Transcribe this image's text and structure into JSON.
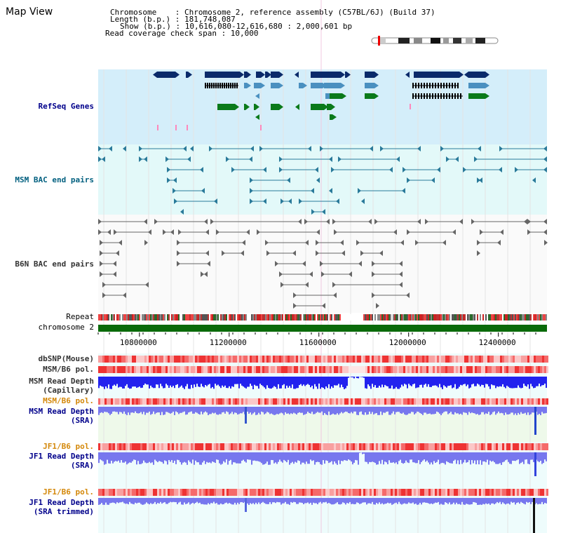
{
  "page_title": "Map View",
  "header": {
    "chromosome_line": "Chromosome    : Chromosome 2, reference assembly (C57BL/6J) (Build 37)",
    "length_line": "Length (b.p.) : 181,748,087",
    "show_line": "Show (b.p.) : 10,616,080-12,616,680 : 2,000,601 bp",
    "coverage_line": "Read coverage check span : 10,000"
  },
  "tracks": {
    "refseq": "RefSeq Genes",
    "msm_bac": "MSM BAC end pairs",
    "b6n_bac": "B6N BAC end pairs",
    "repeat": "Repeat",
    "chromosome": "chromosome 2",
    "dbsnp": "dbSNP(Mouse)",
    "msm_b6_pol_1": "MSM/B6 pol.",
    "msm_depth_cap_1": "MSM Read Depth",
    "msm_depth_cap_2": "(Capillary)",
    "msm_b6_pol_2": "MSM/B6 pol.",
    "msm_depth_sra_1": "MSM Read Depth",
    "msm_depth_sra_2": "(SRA)",
    "jf1_b6_pol_1": "JF1/B6 pol.",
    "jf1_depth_sra_1": "JF1 Read Depth",
    "jf1_depth_sra_2": "(SRA)",
    "jf1_b6_pol_2": "JF1/B6 pol.",
    "jf1_depth_trim_1": "JF1 Read Depth",
    "jf1_depth_trim_2": "(SRA trimmed)"
  },
  "axis": {
    "ticks": [
      {
        "bp": 10800000,
        "label": "10800000"
      },
      {
        "bp": 11200000,
        "label": "11200000"
      },
      {
        "bp": 11600000,
        "label": "11600000"
      },
      {
        "bp": 12000000,
        "label": "12000000"
      },
      {
        "bp": 12400000,
        "label": "12400000"
      }
    ],
    "start_bp": 10616080,
    "end_bp": 12616680
  },
  "colors": {
    "label_blue": "#00008b",
    "label_teal": "#005f7f",
    "label_gray": "#333333",
    "label_orange": "#d4880a",
    "gene_navy": "#0a2a6a",
    "gene_steel": "#4a90c0",
    "gene_green": "#0a7a1a",
    "gene_pink": "#ff88bb",
    "bac_teal": "#2a7a9a",
    "bac_gray": "#666666",
    "depth_blue": "#2222ee",
    "depth_light": "#7777ee",
    "chrom_green": "#0a6a0a"
  }
}
